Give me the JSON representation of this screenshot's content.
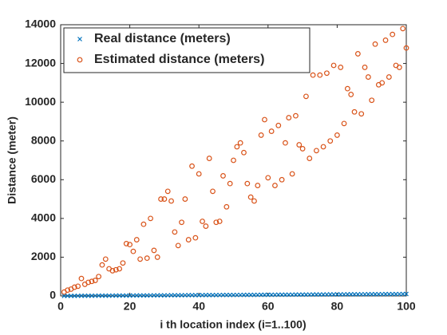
{
  "chart_data": {
    "type": "scatter",
    "xlabel": "i th location index (i=1..100)",
    "ylabel": "Distance (meter)",
    "x": [
      1,
      2,
      3,
      4,
      5,
      6,
      7,
      8,
      9,
      10,
      11,
      12,
      13,
      14,
      15,
      16,
      17,
      18,
      19,
      20,
      21,
      22,
      23,
      24,
      25,
      26,
      27,
      28,
      29,
      30,
      31,
      32,
      33,
      34,
      35,
      36,
      37,
      38,
      39,
      40,
      41,
      42,
      43,
      44,
      45,
      46,
      47,
      48,
      49,
      50,
      51,
      52,
      53,
      54,
      55,
      56,
      57,
      58,
      59,
      60,
      61,
      62,
      63,
      64,
      65,
      66,
      67,
      68,
      69,
      70,
      71,
      72,
      73,
      74,
      75,
      76,
      77,
      78,
      79,
      80,
      81,
      82,
      83,
      84,
      85,
      86,
      87,
      88,
      89,
      90,
      91,
      92,
      93,
      94,
      95,
      96,
      97,
      98,
      99,
      100
    ],
    "series": [
      {
        "name": "Real distance (meters)",
        "color": "#0072bd",
        "marker": "x",
        "values": [
          1,
          2,
          3,
          4,
          5,
          6,
          7,
          8,
          9,
          10,
          11,
          12,
          13,
          14,
          15,
          16,
          17,
          18,
          19,
          20,
          21,
          22,
          23,
          24,
          25,
          26,
          27,
          28,
          29,
          30,
          31,
          32,
          33,
          34,
          35,
          36,
          37,
          38,
          39,
          40,
          41,
          42,
          43,
          44,
          45,
          46,
          47,
          48,
          49,
          50,
          51,
          52,
          53,
          54,
          55,
          56,
          57,
          58,
          59,
          60,
          61,
          62,
          63,
          64,
          65,
          66,
          67,
          68,
          69,
          70,
          71,
          72,
          73,
          74,
          75,
          76,
          77,
          78,
          79,
          80,
          81,
          82,
          83,
          84,
          85,
          86,
          87,
          88,
          89,
          90,
          91,
          92,
          93,
          94,
          95,
          96,
          97,
          98,
          99,
          100
        ]
      },
      {
        "name": "Estimated distance (meters)",
        "color": "#d95319",
        "marker": "o",
        "values": [
          200,
          300,
          350,
          450,
          500,
          900,
          600,
          700,
          750,
          800,
          1000,
          1600,
          1900,
          1400,
          1300,
          1350,
          1400,
          1700,
          2700,
          2650,
          2300,
          2900,
          1900,
          3700,
          1950,
          4000,
          2350,
          2000,
          5000,
          5000,
          5400,
          4900,
          3300,
          2600,
          3800,
          5000,
          2900,
          6700,
          3000,
          6300,
          3850,
          3600,
          7100,
          5400,
          3800,
          3850,
          6200,
          4600,
          5800,
          7000,
          7700,
          7900,
          7400,
          5800,
          5100,
          4900,
          5700,
          8300,
          9100,
          6100,
          8500,
          5700,
          8800,
          6000,
          7900,
          9200,
          6300,
          9300,
          7800,
          7600,
          10300,
          7100,
          11400,
          7500,
          11400,
          7700,
          11500,
          8000,
          11900,
          8300,
          11800,
          8900,
          10700,
          10400,
          9500,
          12500,
          9400,
          11800,
          11300,
          10100,
          13000,
          10900,
          11000,
          13200,
          11300,
          13500,
          11900,
          11800,
          13800,
          12800
        ]
      }
    ],
    "xlim": [
      0,
      100
    ],
    "xticks": [
      0,
      20,
      40,
      60,
      80,
      100
    ],
    "ylim": [
      0,
      14000
    ],
    "yticks": [
      0,
      2000,
      4000,
      6000,
      8000,
      10000,
      12000,
      14000
    ],
    "legend": "northwest"
  }
}
